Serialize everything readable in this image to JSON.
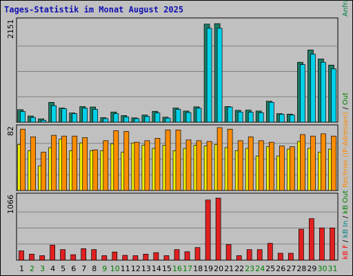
{
  "colors": {
    "background": "#c0c0c0",
    "title": "#1010b0",
    "weekday_label": "#000000",
    "weekend_label": "#008000",
    "visits": "#1d7a64",
    "visits_new": "#00d0e8",
    "pages": "#f0f000",
    "hits": "#ff8c00",
    "bytes": "#e02020",
    "legend_visits": "#008040",
    "legend_pages": "#0040c0",
    "legend_ips": "#00a0ff",
    "legend_rechner": "#ff8c00",
    "legend_out": "#008000",
    "legend_kbin": "#008080",
    "legend_kbout": "#008000",
    "legend_kbf": "#ff0000"
  },
  "chart_data": {
    "type": "bar",
    "title": "Tages-Statistik im Monat August 2025",
    "categories": [
      "1",
      "2",
      "3",
      "4",
      "5",
      "6",
      "7",
      "8",
      "9",
      "10",
      "11",
      "12",
      "13",
      "14",
      "15",
      "16",
      "17",
      "18",
      "19",
      "20",
      "21",
      "22",
      "23",
      "24",
      "25",
      "26",
      "27",
      "28",
      "29",
      "30",
      "31"
    ],
    "weekend_days": [
      "2",
      "3",
      "9",
      "10",
      "16",
      "17",
      "23",
      "24",
      "30",
      "31"
    ],
    "panels": [
      {
        "name": "Anfragen / Dateien / Seiten",
        "ymax": 2151,
        "ytick_label": "2151",
        "series": [
          {
            "name": "Anfragen",
            "values": [
              265,
              130,
              70,
              420,
              300,
              195,
              330,
              320,
              95,
              215,
              140,
              90,
              150,
              230,
              105,
              300,
              235,
              325,
              2080,
              2090,
              330,
              250,
              255,
              235,
              445,
              180,
              170,
              1270,
              1530,
              1340,
              1210
            ]
          },
          {
            "name": "Dateien",
            "values": [
              225,
              100,
              40,
              350,
              285,
              180,
              295,
              270,
              75,
              180,
              110,
              75,
              120,
              195,
              85,
              270,
              205,
              295,
              1990,
              1990,
              320,
              215,
              210,
              200,
              420,
              165,
              150,
              1220,
              1440,
              1270,
              1130
            ]
          }
        ]
      },
      {
        "name": "Rechner (IP-Adressen) / Seiten",
        "ymax": 82,
        "ytick_label": "82",
        "series": [
          {
            "name": "Seiten",
            "values": [
              60,
              52,
              32,
              56,
              67,
              52,
              62,
              52,
              52,
              61,
              50,
              62,
              59,
              55,
              59,
              52,
              55,
              59,
              58,
              60,
              56,
              52,
              55,
              45,
              57,
              45,
              54,
              64,
              55,
              50,
              54
            ]
          },
          {
            "name": "Rechner",
            "values": [
              80,
              70,
              50,
              72,
              71,
              71,
              69,
              53,
              65,
              78,
              77,
              63,
              65,
              68,
              79,
              79,
              66,
              65,
              64,
              82,
              80,
              65,
              70,
              65,
              63,
              58,
              57,
              73,
              71,
              74,
              71
            ]
          }
        ]
      },
      {
        "name": "kB F / kB In / kB Out",
        "ymax": 1066,
        "ytick_label": "1066",
        "series": [
          {
            "name": "kB F",
            "values": [
              155,
              100,
              75,
              250,
              175,
              90,
              190,
              175,
              75,
              135,
              80,
              75,
              100,
              125,
              75,
              175,
              140,
              210,
              1000,
              1030,
              260,
              75,
              175,
              175,
              280,
              115,
              115,
              515,
              690,
              535,
              535
            ]
          }
        ]
      }
    ],
    "legend": {
      "top": [
        "Anfragen",
        "/",
        "Dateien",
        "/",
        "Seiten"
      ],
      "middle": [
        "Rechner (IP-Adressen)",
        "/",
        "Out"
      ],
      "bottom": [
        "kB F",
        "/",
        "kB In",
        "/",
        "kB Out"
      ]
    }
  }
}
